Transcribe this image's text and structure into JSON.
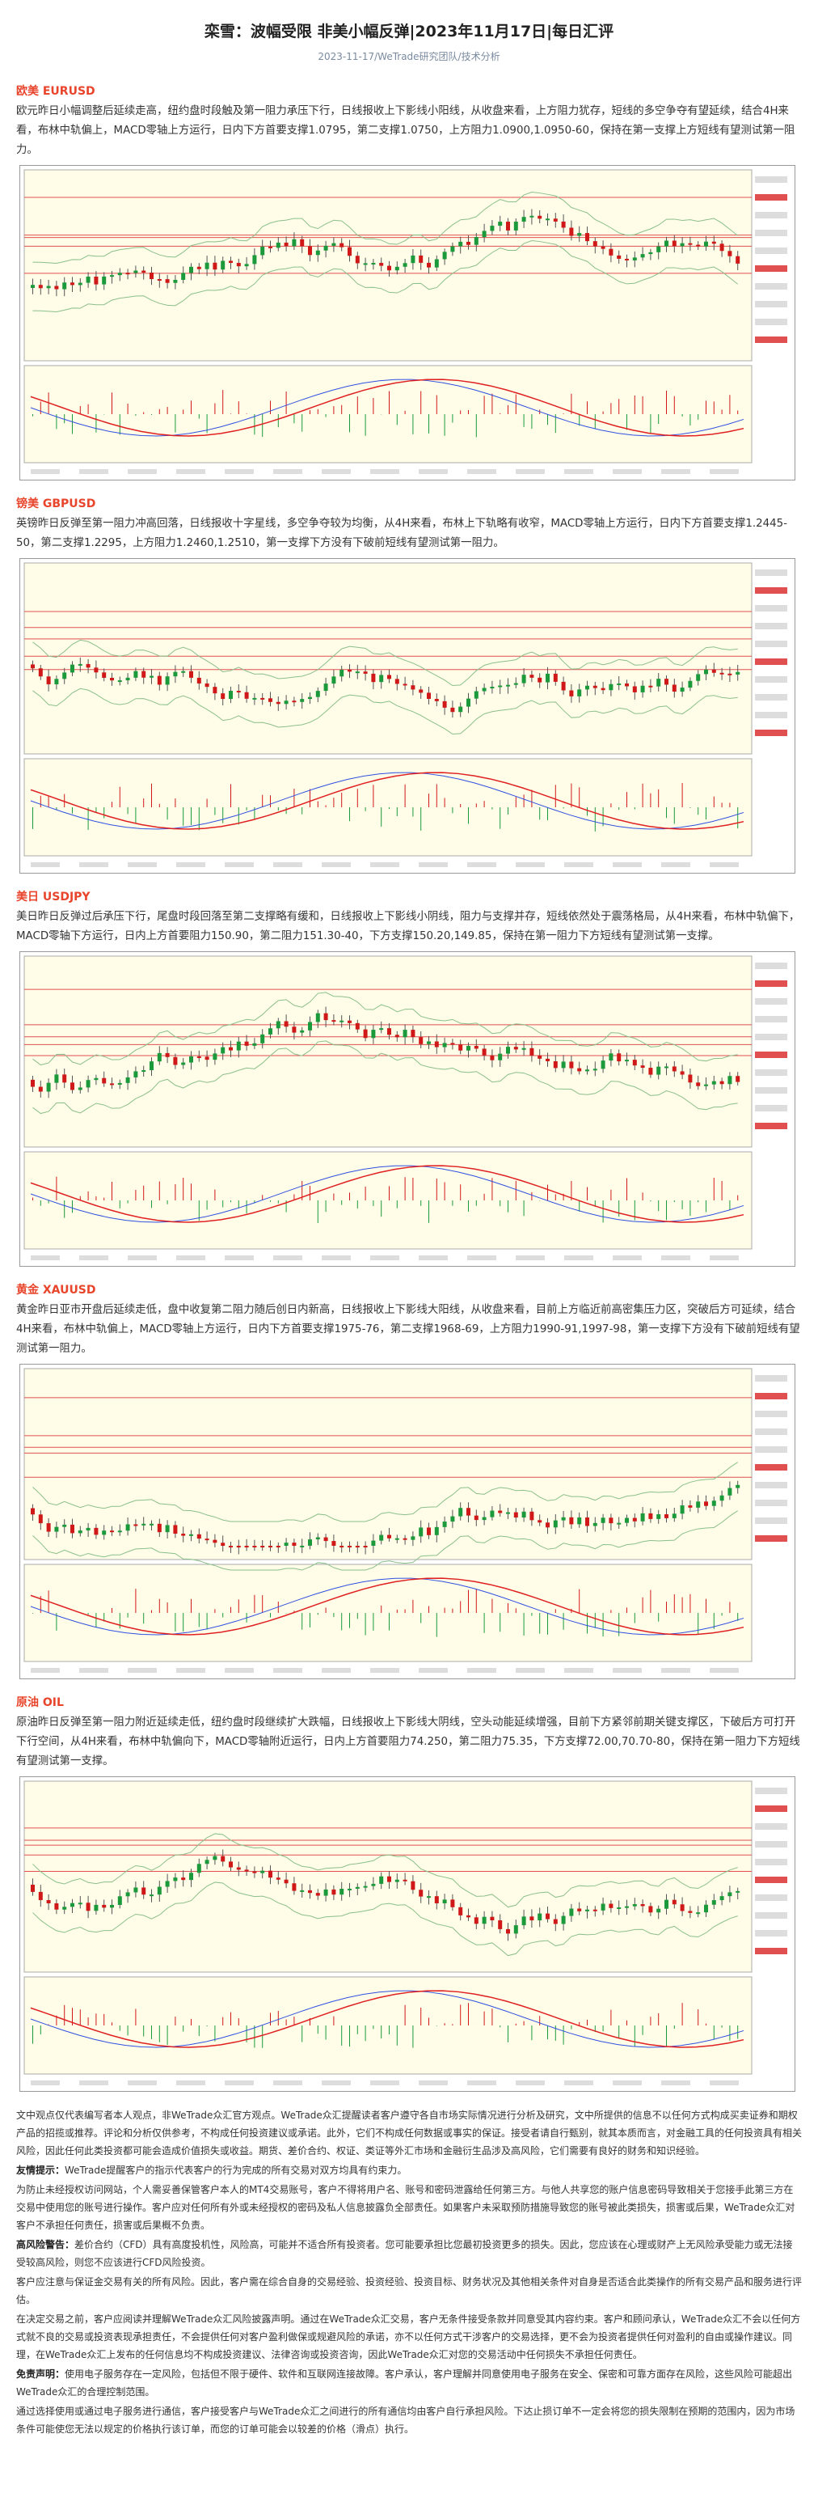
{
  "header": {
    "title": "栾雪：波幅受限 非美小幅反弹|2023年11月17日|每日汇评",
    "subtitle": "2023-11-17/WeTrade研究团队/技术分析"
  },
  "sections": [
    {
      "title": "欧美 EURUSD",
      "text": "欧元昨日小幅调整后延续走高，纽约盘时段触及第一阻力承压下行，日线报收上下影线小阳线，从收盘来看，上方阻力犹存，短线的多空争夺有望延续，结合4H来看，布林中轨偏上，MACD零轴上方运行，日内下方首要支撑1.0795，第二支撑1.0750，上方阻力1.0900,1.0950-60，保持在第一支撑上方短线有望测试第一阻力。"
    },
    {
      "title": "镑美 GBPUSD",
      "text": "英镑昨日反弹至第一阻力冲高回落，日线报收十字星线，多空争夺较为均衡，从4H来看，布林上下轨略有收窄，MACD零轴上方运行，日内下方首要支撑1.2445-50，第二支撑1.2295，上方阻力1.2460,1.2510，第一支撑下方没有下破前短线有望测试第一阻力。"
    },
    {
      "title": "美日 USDJPY",
      "text": "美日昨日反弹过后承压下行，尾盘时段回落至第二支撑略有缓和，日线报收上下影线小阴线，阻力与支撑并存，短线依然处于震荡格局，从4H来看，布林中轨偏下，MACD零轴下方运行，日内上方首要阻力150.90，第二阻力151.30-40，下方支撑150.20,149.85，保持在第一阻力下方短线有望测试第一支撑。"
    },
    {
      "title": "黄金 XAUUSD",
      "text": "黄金昨日亚市开盘后延续走低，盘中收复第二阻力随后创日内新高，日线报收上下影线大阳线，从收盘来看，目前上方临近前高密集压力区，突破后方可延续，结合4H来看，布林中轨偏上，MACD零轴上方运行，日内下方首要支撑1975-76，第二支撑1968-69，上方阻力1990-91,1997-98，第一支撑下方没有下破前短线有望测试第一阻力。"
    },
    {
      "title": "原油 OIL",
      "text": "原油昨日反弹至第一阻力附近延续走低，纽约盘时段继续扩大跌幅，日线报收上下影线大阴线，空头动能延续增强，目前下方紧邻前期关键支撑区，下破后方可打开下行空间，从4H来看，布林中轨偏向下，MACD零轴附近运行，日内上方首要阻力74.250，第二阻力75.35，下方支撑72.00,70.70-80，保持在第一阻力下方短线有望测试第一支撑。"
    }
  ],
  "disclaimer": [
    {
      "text": "文中观点仅代表编写者本人观点，非WeTrade众汇官方观点。WeTrade众汇提醒读者客户遵守各自市场实际情况进行分析及研究，文中所提供的信息不以任何方式构成买卖证券和期权产品的招揽或推荐。评论和分析仅供参考，不构成任何投资建议或承诺。此外，它们不构成任何数据或事实的保证。接受者请自行甄别，就其本质而言，对金融工具的任何投资具有相关风险，因此任何此类投资都可能会造成价值损失或收益。期货、差价合约、权证、类证等外汇市场和金融衍生品涉及高风险，它们需要有良好的财务和知识经验。"
    },
    {
      "label": "友情提示：",
      "text": "WeTrade提醒客户的指示代表客户的行为完成的所有交易对双方均具有约束力。"
    },
    {
      "text": "为防止未经授权访问网站，个人需妥善保管客户本人的MT4交易账号，客户不得将用户名、账号和密码泄露给任何第三方。与他人共享您的账户信息密码导致相关于您接手此第三方在交易中使用您的账号进行操作。客户应对任何所有外或未经授权的密码及私人信息披露负全部责任。如果客户未采取预防措施导致您的账号被此类损失，损害或后果，WeTrade众汇对客户不承担任何责任，损害或后果概不负责。"
    },
    {
      "label": "高风险警告：",
      "text": "差价合约（CFD）具有高度投机性，风险高，可能并不适合所有投资者。您可能要承担比您最初投资更多的损失。因此，您应该在心理或财产上无风险承受能力或无法接受较高风险，则您不应该进行CFD风险投资。"
    },
    {
      "text": "客户应注意与保证金交易有关的所有风险。因此，客户需在综合自身的交易经验、投资经验、投资目标、财务状况及其他相关条件对自身是否适合此类操作的所有交易产品和服务进行评估。"
    },
    {
      "text": "在决定交易之前，客户应阅读并理解WeTrade众汇风险披露声明。通过在WeTrade众汇交易，客户无条件接受条款并同意受其内容约束。客户和顾问承认，WeTrade众汇不会以任何方式就不良的交易或投资表现承担责任，不会提供任何对客户盈利做保或规避风险的承诺，亦不以任何方式干涉客户的交易选择，更不会为投资者提供任何对盈利的自由或操作建议。同理，在WeTrade众汇上发布的任何信息均不构成投资建议、法律咨询或投资咨询，因此WeTrade众汇对您的交易活动中任何损失不承担任何责任。"
    },
    {
      "label": "免责声明：",
      "text": "使用电子服务存在一定风险，包括但不限于硬件、软件和互联网连接故障。客户承认，客户理解并同意使用电子服务在安全、保密和可靠方面存在风险，这些风险可能超出WeTrade众汇的合理控制范围。"
    },
    {
      "text": "通过选择使用或通过电子服务进行通信，客户接受客户与WeTrade众汇之间进行的所有通信均由客户自行承担风险。下达止损订单不一定会将您的损失限制在预期的范围内，因为市场条件可能使您无法以规定的价格执行该订单，而您的订单可能会以较差的价格（滑点）执行。"
    }
  ]
}
